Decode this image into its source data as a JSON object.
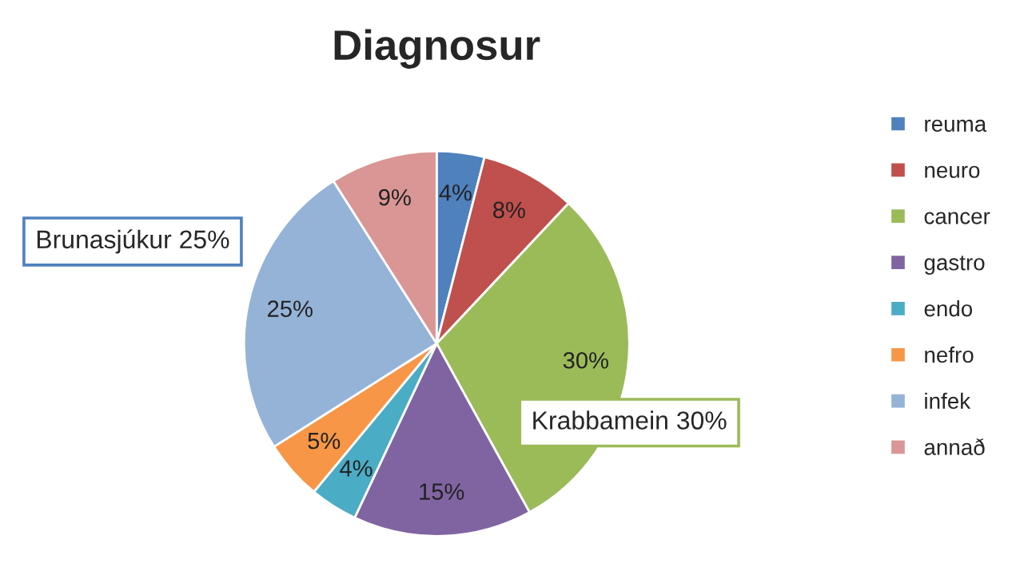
{
  "chart_data": {
    "type": "pie",
    "title": "Diagnosur",
    "categories": [
      "reuma",
      "neuro",
      "cancer",
      "gastro",
      "endo",
      "nefro",
      "infek",
      "annað"
    ],
    "values": [
      4,
      8,
      30,
      15,
      4,
      5,
      25,
      9
    ],
    "value_labels": [
      "4%",
      "8%",
      "30%",
      "15%",
      "4%",
      "5%",
      "25%",
      "9%"
    ],
    "colors": [
      "#4f81bd",
      "#c0504d",
      "#9bbb59",
      "#8064a2",
      "#4bacc6",
      "#f79646",
      "#95b3d7",
      "#d99694"
    ],
    "annotations": [
      "Brunasjúkur 25%",
      "Krabbamein 30%"
    ],
    "legend": "right"
  }
}
